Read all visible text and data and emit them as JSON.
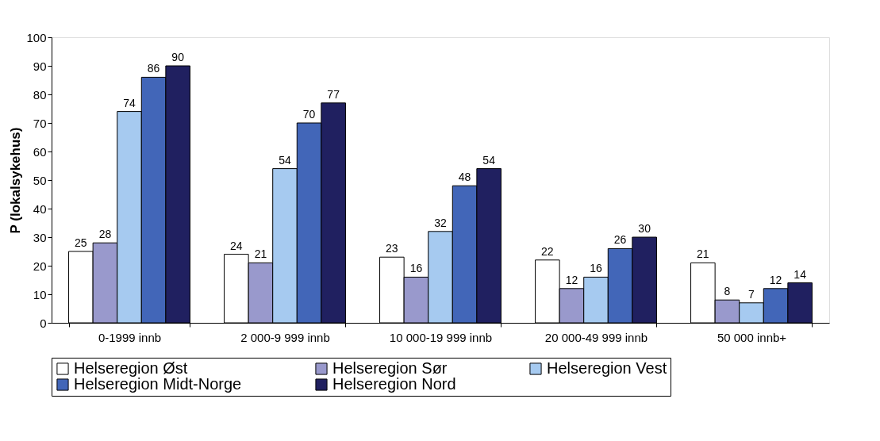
{
  "chart_data": {
    "type": "bar",
    "ylabel": "P (lokalsykehus)",
    "categories": [
      "0-1999 innb",
      "2 000-9 999 innb",
      "10 000-19 999 innb",
      "20 000-49 999 innb",
      "50 000 innb+"
    ],
    "series": [
      {
        "name": "Helseregion Øst",
        "color": "#ffffff",
        "values": [
          25,
          24,
          23,
          22,
          21
        ]
      },
      {
        "name": "Helseregion Sør",
        "color": "#9999cc",
        "values": [
          28,
          21,
          16,
          12,
          8
        ]
      },
      {
        "name": "Helseregion Vest",
        "color": "#a6caf0",
        "values": [
          74,
          54,
          32,
          16,
          7
        ]
      },
      {
        "name": "Helseregion Midt-Norge",
        "color": "#4266b8",
        "values": [
          86,
          70,
          48,
          26,
          12
        ]
      },
      {
        "name": "Helseregion Nord",
        "color": "#202060",
        "values": [
          90,
          77,
          54,
          30,
          14
        ]
      }
    ],
    "ylim": [
      0,
      100
    ],
    "yticks": [
      0,
      10,
      20,
      30,
      40,
      50,
      60,
      70,
      80,
      90,
      100
    ],
    "grid": false,
    "legend": "bottom",
    "data_labels": true
  }
}
